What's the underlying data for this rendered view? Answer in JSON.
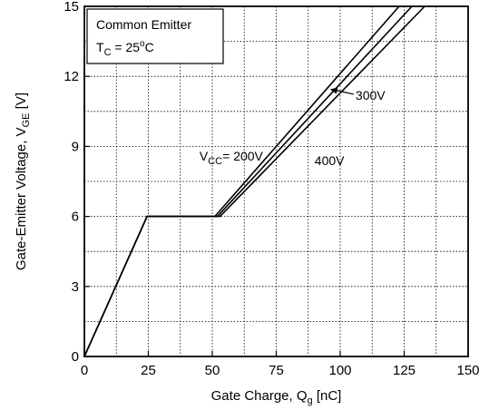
{
  "chart_data": {
    "type": "line",
    "xlabel": {
      "main": "Gate Charge, Q",
      "sub": "g",
      "tail": " [nC]"
    },
    "ylabel": {
      "main": "Gate-Emitter Voltage, V",
      "sub": "GE",
      "tail": " [V]"
    },
    "xlim": [
      0,
      150
    ],
    "ylim": [
      0,
      15
    ],
    "xticks": [
      0,
      25,
      50,
      75,
      100,
      125,
      150
    ],
    "yticks": [
      0,
      3,
      6,
      9,
      12,
      15
    ],
    "xgrid_step": 12.5,
    "ygrid_step": 1.5,
    "grid": true,
    "legend_box": {
      "line1": "Common Emitter",
      "line2": {
        "pre": "T",
        "sub": "C",
        "mid": " = 25",
        "sup": "o",
        "post": "C"
      },
      "placement": "top-left"
    },
    "series": [
      {
        "x": [
          0,
          24.5,
          51,
          123
        ],
        "y": [
          0,
          6,
          6,
          15
        ]
      },
      {
        "x": [
          0,
          24.5,
          52,
          128
        ],
        "y": [
          0,
          6,
          6,
          15
        ]
      },
      {
        "x": [
          0,
          24.5,
          53,
          133
        ],
        "y": [
          0,
          6,
          6,
          15
        ]
      }
    ],
    "annotations": [
      {
        "id": "vcc-200",
        "pre": "V",
        "sub": "CC",
        "post": "= 200V",
        "x": 45,
        "y": 8.4
      },
      {
        "id": "v-300",
        "text": "300V",
        "x": 106,
        "y": 11.0,
        "arrow_to": [
          96,
          11.45
        ]
      },
      {
        "id": "v-400",
        "text": "400V",
        "x": 90,
        "y": 8.2
      }
    ]
  }
}
